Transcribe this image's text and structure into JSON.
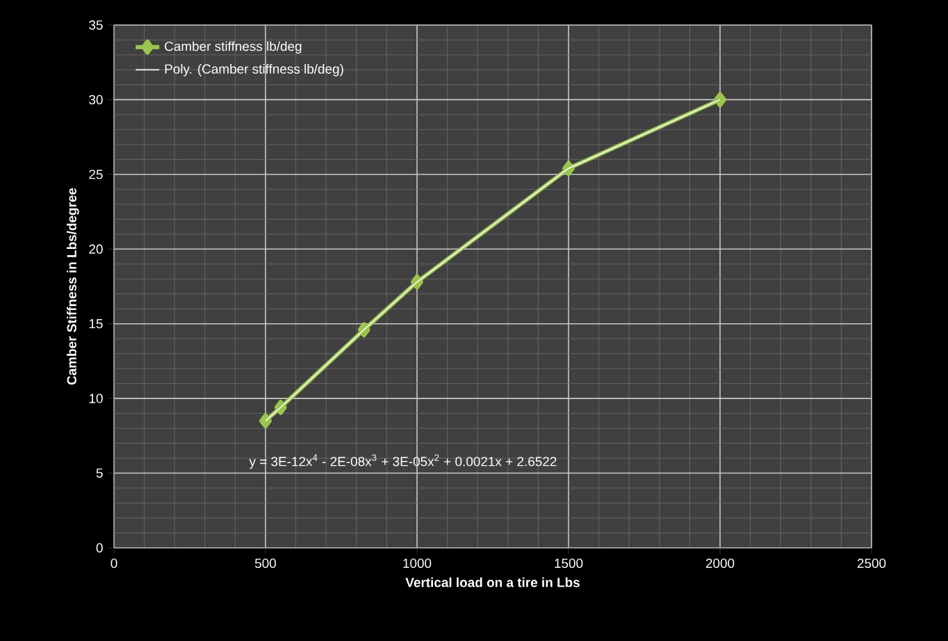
{
  "chart_data": {
    "type": "line",
    "xlabel": "Vertical load on a tire in Lbs",
    "ylabel": "Camber Stiffness in Lbs/degree",
    "series": [
      {
        "name": "Camber stiffness lb/deg",
        "color": "#9bc54e",
        "x": [
          500,
          550,
          825,
          1000,
          1500,
          2000
        ],
        "values": [
          8.5,
          9.4,
          14.6,
          17.8,
          25.4,
          30.0
        ],
        "marker": "diamond"
      },
      {
        "name": "Poly. (Camber stiffness lb/deg)",
        "type": "line",
        "color": "#ffffff",
        "x": [
          500,
          550,
          825,
          1000,
          1500,
          2000
        ],
        "values": [
          8.5,
          9.4,
          14.6,
          17.8,
          25.4,
          30.0
        ],
        "marker": "none"
      }
    ],
    "annotations": [
      "y = 3E-12x$^{4}$ - 2E-08x$^{3}$ + 3E-05x$^{2}$ + 0.0021x + 2.6522"
    ],
    "xlim": [
      0,
      2500
    ],
    "xticks": [
      0,
      500,
      1000,
      1500,
      2000,
      2500
    ],
    "ylim": [
      0,
      35
    ],
    "yticks": [
      0,
      5,
      10,
      15,
      20,
      25,
      30,
      35
    ],
    "grid": true,
    "legend": "top left",
    "line_style": "solid"
  }
}
